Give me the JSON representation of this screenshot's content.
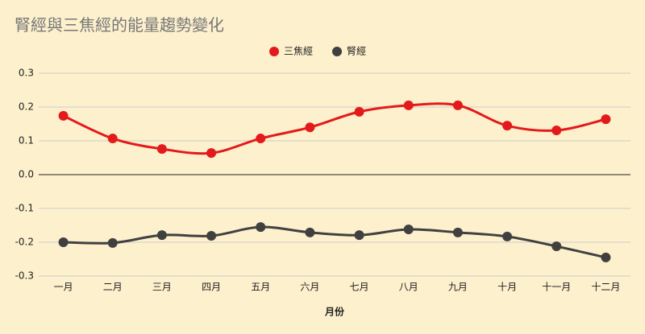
{
  "chart_data": {
    "type": "line",
    "title": "腎經與三焦經的能量趨勢變化",
    "x_label": "月份",
    "categories": [
      "一月",
      "二月",
      "三月",
      "四月",
      "五月",
      "六月",
      "七月",
      "八月",
      "九月",
      "十月",
      "十一月",
      "十二月"
    ],
    "series": [
      {
        "name": "三焦經",
        "color": "#e31a1c",
        "values": [
          0.174,
          0.107,
          0.076,
          0.064,
          0.107,
          0.14,
          0.186,
          0.205,
          0.205,
          0.145,
          0.131,
          0.164
        ]
      },
      {
        "name": "腎經",
        "color": "#404040",
        "values": [
          -0.2,
          -0.202,
          -0.179,
          -0.181,
          -0.155,
          -0.171,
          -0.179,
          -0.162,
          -0.171,
          -0.183,
          -0.212,
          -0.245
        ]
      }
    ],
    "ylim": [
      -0.3,
      0.3
    ],
    "yticks": [
      -0.3,
      -0.2,
      -0.1,
      {
        "value": 0,
        "label": "0.0"
      },
      0.1,
      0.2,
      0.3
    ],
    "grid": true,
    "smooth": true,
    "legend": "top"
  }
}
